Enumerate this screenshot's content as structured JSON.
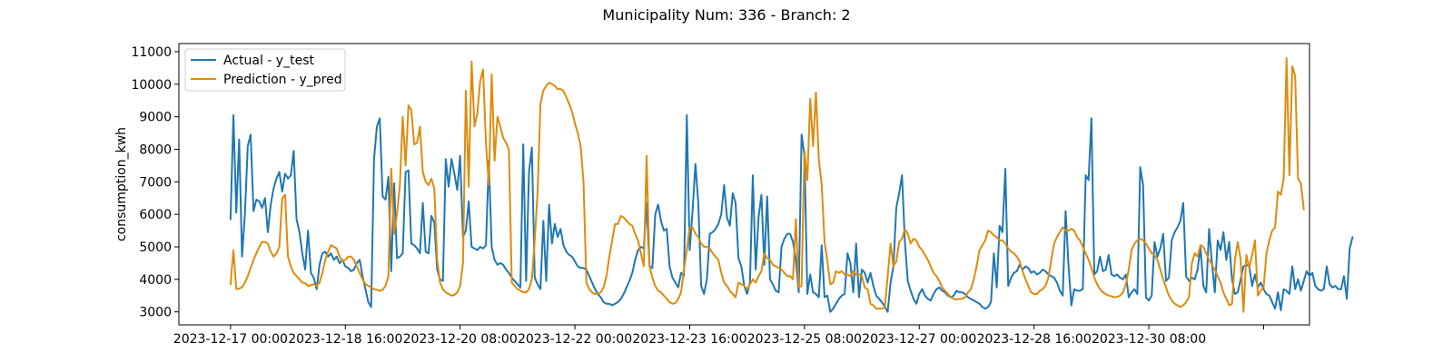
{
  "chart_data": {
    "type": "line",
    "title": "Municipality Num: 336 - Branch: 2",
    "xlabel": "",
    "ylabel": "consumption_kwh",
    "ylim": [
      2600,
      11250
    ],
    "yticks": [
      3000,
      4000,
      5000,
      6000,
      7000,
      8000,
      9000,
      10000,
      11000
    ],
    "x_start": "2023-12-17 00:00",
    "x_step_hours": 1,
    "x_tick_labels": [
      "2023-12-17 00:00",
      "2023-12-18 16:00",
      "2023-12-20 08:00",
      "2023-12-22 00:00",
      "2023-12-23 16:00",
      "2023-12-25 08:00",
      "2023-12-27 00:00",
      "2023-12-28 16:00",
      "2023-12-30 08:00",
      ""
    ],
    "x_tick_hours": [
      0,
      40,
      80,
      120,
      160,
      200,
      240,
      280,
      320,
      360
    ],
    "x_limits_hours": [
      -18,
      376
    ],
    "legend_position": "top-left",
    "grid": false,
    "series": [
      {
        "name": "Actual - y_test",
        "color": "#1f77b4",
        "values": [
          5850,
          9050,
          6050,
          8300,
          4700,
          6000,
          8100,
          8450,
          6100,
          6450,
          6400,
          6200,
          6500,
          5450,
          6300,
          6800,
          7100,
          7300,
          6700,
          7250,
          7100,
          7200,
          7950,
          5850,
          5450,
          4800,
          4300,
          5500,
          4200,
          4050,
          3700,
          4450,
          4800,
          4850,
          4700,
          4800,
          4600,
          4700,
          4500,
          4600,
          4400,
          4350,
          4250,
          4300,
          4500,
          4600,
          4100,
          3700,
          3300,
          3150,
          7700,
          8700,
          8950,
          6550,
          6450,
          7150,
          4250,
          6950,
          4650,
          4700,
          4800,
          7300,
          7350,
          5100,
          5050,
          4950,
          4800,
          6350,
          4850,
          4800,
          5950,
          5750,
          4300,
          4000,
          3950,
          7700,
          6850,
          7700,
          7250,
          6750,
          7800,
          5300,
          5500,
          6400,
          5000,
          4950,
          4900,
          5000,
          4950,
          5050,
          7650,
          5000,
          4600,
          4450,
          4500,
          4450,
          4300,
          4200,
          4050,
          3950,
          3850,
          3750,
          8150,
          3950,
          7300,
          8050,
          4050,
          3850,
          3700,
          5800,
          3950,
          6300,
          5100,
          5700,
          5300,
          5550,
          5050,
          4850,
          4750,
          4700,
          4550,
          4400,
          4350,
          4350,
          4300,
          4100,
          3900,
          3700,
          3550,
          3450,
          3300,
          3250,
          3250,
          3200,
          3250,
          3300,
          3400,
          3550,
          3750,
          3950,
          4200,
          4600,
          4900,
          5000,
          4950,
          6350,
          4400,
          4350,
          6000,
          6300,
          5800,
          5500,
          5550,
          4400,
          4050,
          3900,
          3750,
          4200,
          4100,
          9050,
          4900,
          6100,
          7550,
          6350,
          3800,
          3550,
          4000,
          5400,
          5450,
          5550,
          5700,
          6000,
          6900,
          5900,
          5650,
          6650,
          6350,
          4650,
          4400,
          3800,
          3550,
          3900,
          7200,
          4300,
          5900,
          6600,
          4450,
          6550,
          4000,
          3850,
          3650,
          3600,
          5000,
          5250,
          5400,
          5400,
          5150,
          4600,
          3600,
          8450,
          7800,
          3550,
          4150,
          3600,
          3550,
          3450,
          5050,
          3450,
          3500,
          3000,
          3100,
          3250,
          3400,
          3500,
          3550,
          4800,
          4500,
          3600,
          5100,
          3450,
          4300,
          4200,
          3900,
          4200,
          3800,
          3500,
          3400,
          3300,
          3150,
          3000,
          3900,
          4400,
          6200,
          6650,
          7200,
          5150,
          3950,
          3650,
          3400,
          3250,
          3550,
          3700,
          3500,
          3400,
          3350,
          3550,
          3700,
          3750,
          3650,
          3600,
          3500,
          3450,
          3500,
          3650,
          3600,
          3600,
          3550,
          3450,
          3400,
          3350,
          3300,
          3250,
          3150,
          3100,
          3150,
          3300,
          4800,
          3750,
          5650,
          5450,
          7400,
          3800,
          4050,
          4200,
          4250,
          4450,
          4300,
          4400,
          4350,
          4200,
          4250,
          4150,
          4200,
          4300,
          4250,
          4150,
          4100,
          4050,
          3900,
          3650,
          3500,
          6100,
          4450,
          3200,
          3700,
          3650,
          3650,
          3700,
          7200,
          7050,
          8950,
          4150,
          4250,
          4700,
          4250,
          4300,
          4750,
          4150,
          4100,
          4150,
          4050,
          4000,
          4150,
          3450,
          3600,
          3700,
          3550,
          7450,
          6900,
          3450,
          3350,
          3500,
          5150,
          4700,
          4950,
          5400,
          3950,
          4050,
          5200,
          5450,
          5600,
          5800,
          6350,
          4100,
          3950,
          4050,
          4000,
          4300,
          5000,
          3800,
          3600,
          5550,
          4500,
          3600,
          5200,
          4900,
          5450,
          4600,
          5150,
          4000,
          3550,
          3600,
          4000,
          4400,
          4450,
          4400,
          3800,
          4150,
          3750,
          3900,
          3700,
          3550,
          3500,
          3300,
          3100,
          3600,
          3050,
          3700,
          3650,
          3550,
          4400,
          3700,
          4000,
          3650,
          3950,
          4250,
          4100,
          4200,
          3800,
          3700,
          3650,
          3700,
          4400,
          3850,
          3750,
          3800,
          3700,
          3700,
          4100,
          3400,
          4950,
          5300
        ]
      },
      {
        "name": "Prediction - y_pred",
        "color": "#df8b0c",
        "values": [
          3850,
          4900,
          3700,
          3720,
          3750,
          3900,
          4100,
          4350,
          4600,
          4800,
          5000,
          5150,
          5150,
          5100,
          4850,
          4700,
          4800,
          5000,
          6500,
          6600,
          4700,
          4400,
          4200,
          4100,
          4000,
          3900,
          3880,
          3800,
          3820,
          3850,
          3800,
          3900,
          4200,
          4600,
          4850,
          5050,
          5000,
          4950,
          4700,
          4550,
          4600,
          4700,
          4700,
          4600,
          4400,
          4200,
          4000,
          3850,
          3800,
          3750,
          3700,
          3680,
          3650,
          3680,
          3800,
          4100,
          7400,
          5400,
          6000,
          6900,
          9000,
          7500,
          9350,
          9200,
          8150,
          8200,
          8700,
          7300,
          7000,
          6900,
          7100,
          6800,
          4600,
          3900,
          3700,
          3600,
          3550,
          3500,
          3520,
          3600,
          3800,
          4500,
          9800,
          6850,
          10700,
          8700,
          9100,
          10100,
          10450,
          8200,
          6900,
          10300,
          7650,
          9000,
          8700,
          8350,
          8200,
          8000,
          3900,
          3800,
          3700,
          3650,
          3600,
          3600,
          3700,
          4000,
          5200,
          6700,
          9400,
          9800,
          9950,
          10050,
          10000,
          9950,
          9850,
          9850,
          9800,
          9600,
          9400,
          9150,
          8800,
          8500,
          8100,
          7000,
          3900,
          3700,
          3600,
          3550,
          3560,
          3600,
          3750,
          4100,
          4700,
          5200,
          5700,
          5700,
          5950,
          5900,
          5800,
          5700,
          5650,
          5400,
          5200,
          4800,
          4400,
          7800,
          4400,
          4050,
          3800,
          3650,
          3600,
          3500,
          3400,
          3300,
          3250,
          3270,
          3400,
          3600,
          4300,
          4900,
          5600,
          5600,
          5400,
          5300,
          5100,
          5000,
          5000,
          4950,
          4800,
          4700,
          4600,
          4200,
          3900,
          3800,
          3650,
          3550,
          3450,
          3900,
          3850,
          3800,
          3700,
          3850,
          4000,
          3900,
          4100,
          4250,
          4800,
          4650,
          4600,
          4450,
          4400,
          4350,
          4300,
          4200,
          4100,
          4100,
          4000,
          5850,
          3750,
          3800,
          7950,
          7050,
          9550,
          8100,
          9750,
          7700,
          6900,
          5150,
          4550,
          3850,
          3900,
          4250,
          4200,
          4250,
          4150,
          4150,
          4100,
          4250,
          4150,
          4150,
          4100,
          3750,
          3700,
          3250,
          3200,
          3100,
          3100,
          3100,
          3150,
          4100,
          5100,
          4400,
          4550,
          5150,
          5250,
          5550,
          5400,
          5100,
          5250,
          5200,
          5000,
          4900,
          4750,
          4600,
          4400,
          4200,
          4100,
          3950,
          3750,
          3650,
          3550,
          3450,
          3400,
          3380,
          3400,
          3400,
          3450,
          3600,
          3700,
          4000,
          4400,
          4900,
          5050,
          5200,
          5500,
          5450,
          5350,
          5300,
          5200,
          5200,
          5100,
          4950,
          4850,
          4800,
          4700,
          4550,
          4250,
          4000,
          3800,
          3600,
          3550,
          3550,
          3650,
          3700,
          3800,
          4050,
          4600,
          5100,
          5300,
          5450,
          5600,
          5500,
          5500,
          5550,
          5500,
          5300,
          5200,
          5000,
          4800,
          4600,
          4350,
          4050,
          3850,
          3700,
          3600,
          3550,
          3500,
          3480,
          3450,
          3460,
          3500,
          3600,
          3850,
          4300,
          4900,
          5100,
          5200,
          5250,
          5200,
          5100,
          4950,
          4800,
          4750,
          4600,
          4300,
          4000,
          3750,
          3500,
          3350,
          3250,
          3200,
          3150,
          3200,
          3300,
          3450,
          4500,
          4800,
          4700,
          5050,
          5000,
          4800,
          4600,
          4450,
          4300,
          4100,
          3900,
          3600,
          3400,
          3200,
          3250,
          4600,
          5150,
          4600,
          3000,
          4750,
          4350,
          4750,
          5200,
          3500,
          3650,
          3750,
          4800,
          5200,
          5500,
          5600,
          6700,
          6600,
          7100,
          10800,
          7200,
          10550,
          10250,
          7100,
          6950,
          6150
        ]
      }
    ]
  }
}
